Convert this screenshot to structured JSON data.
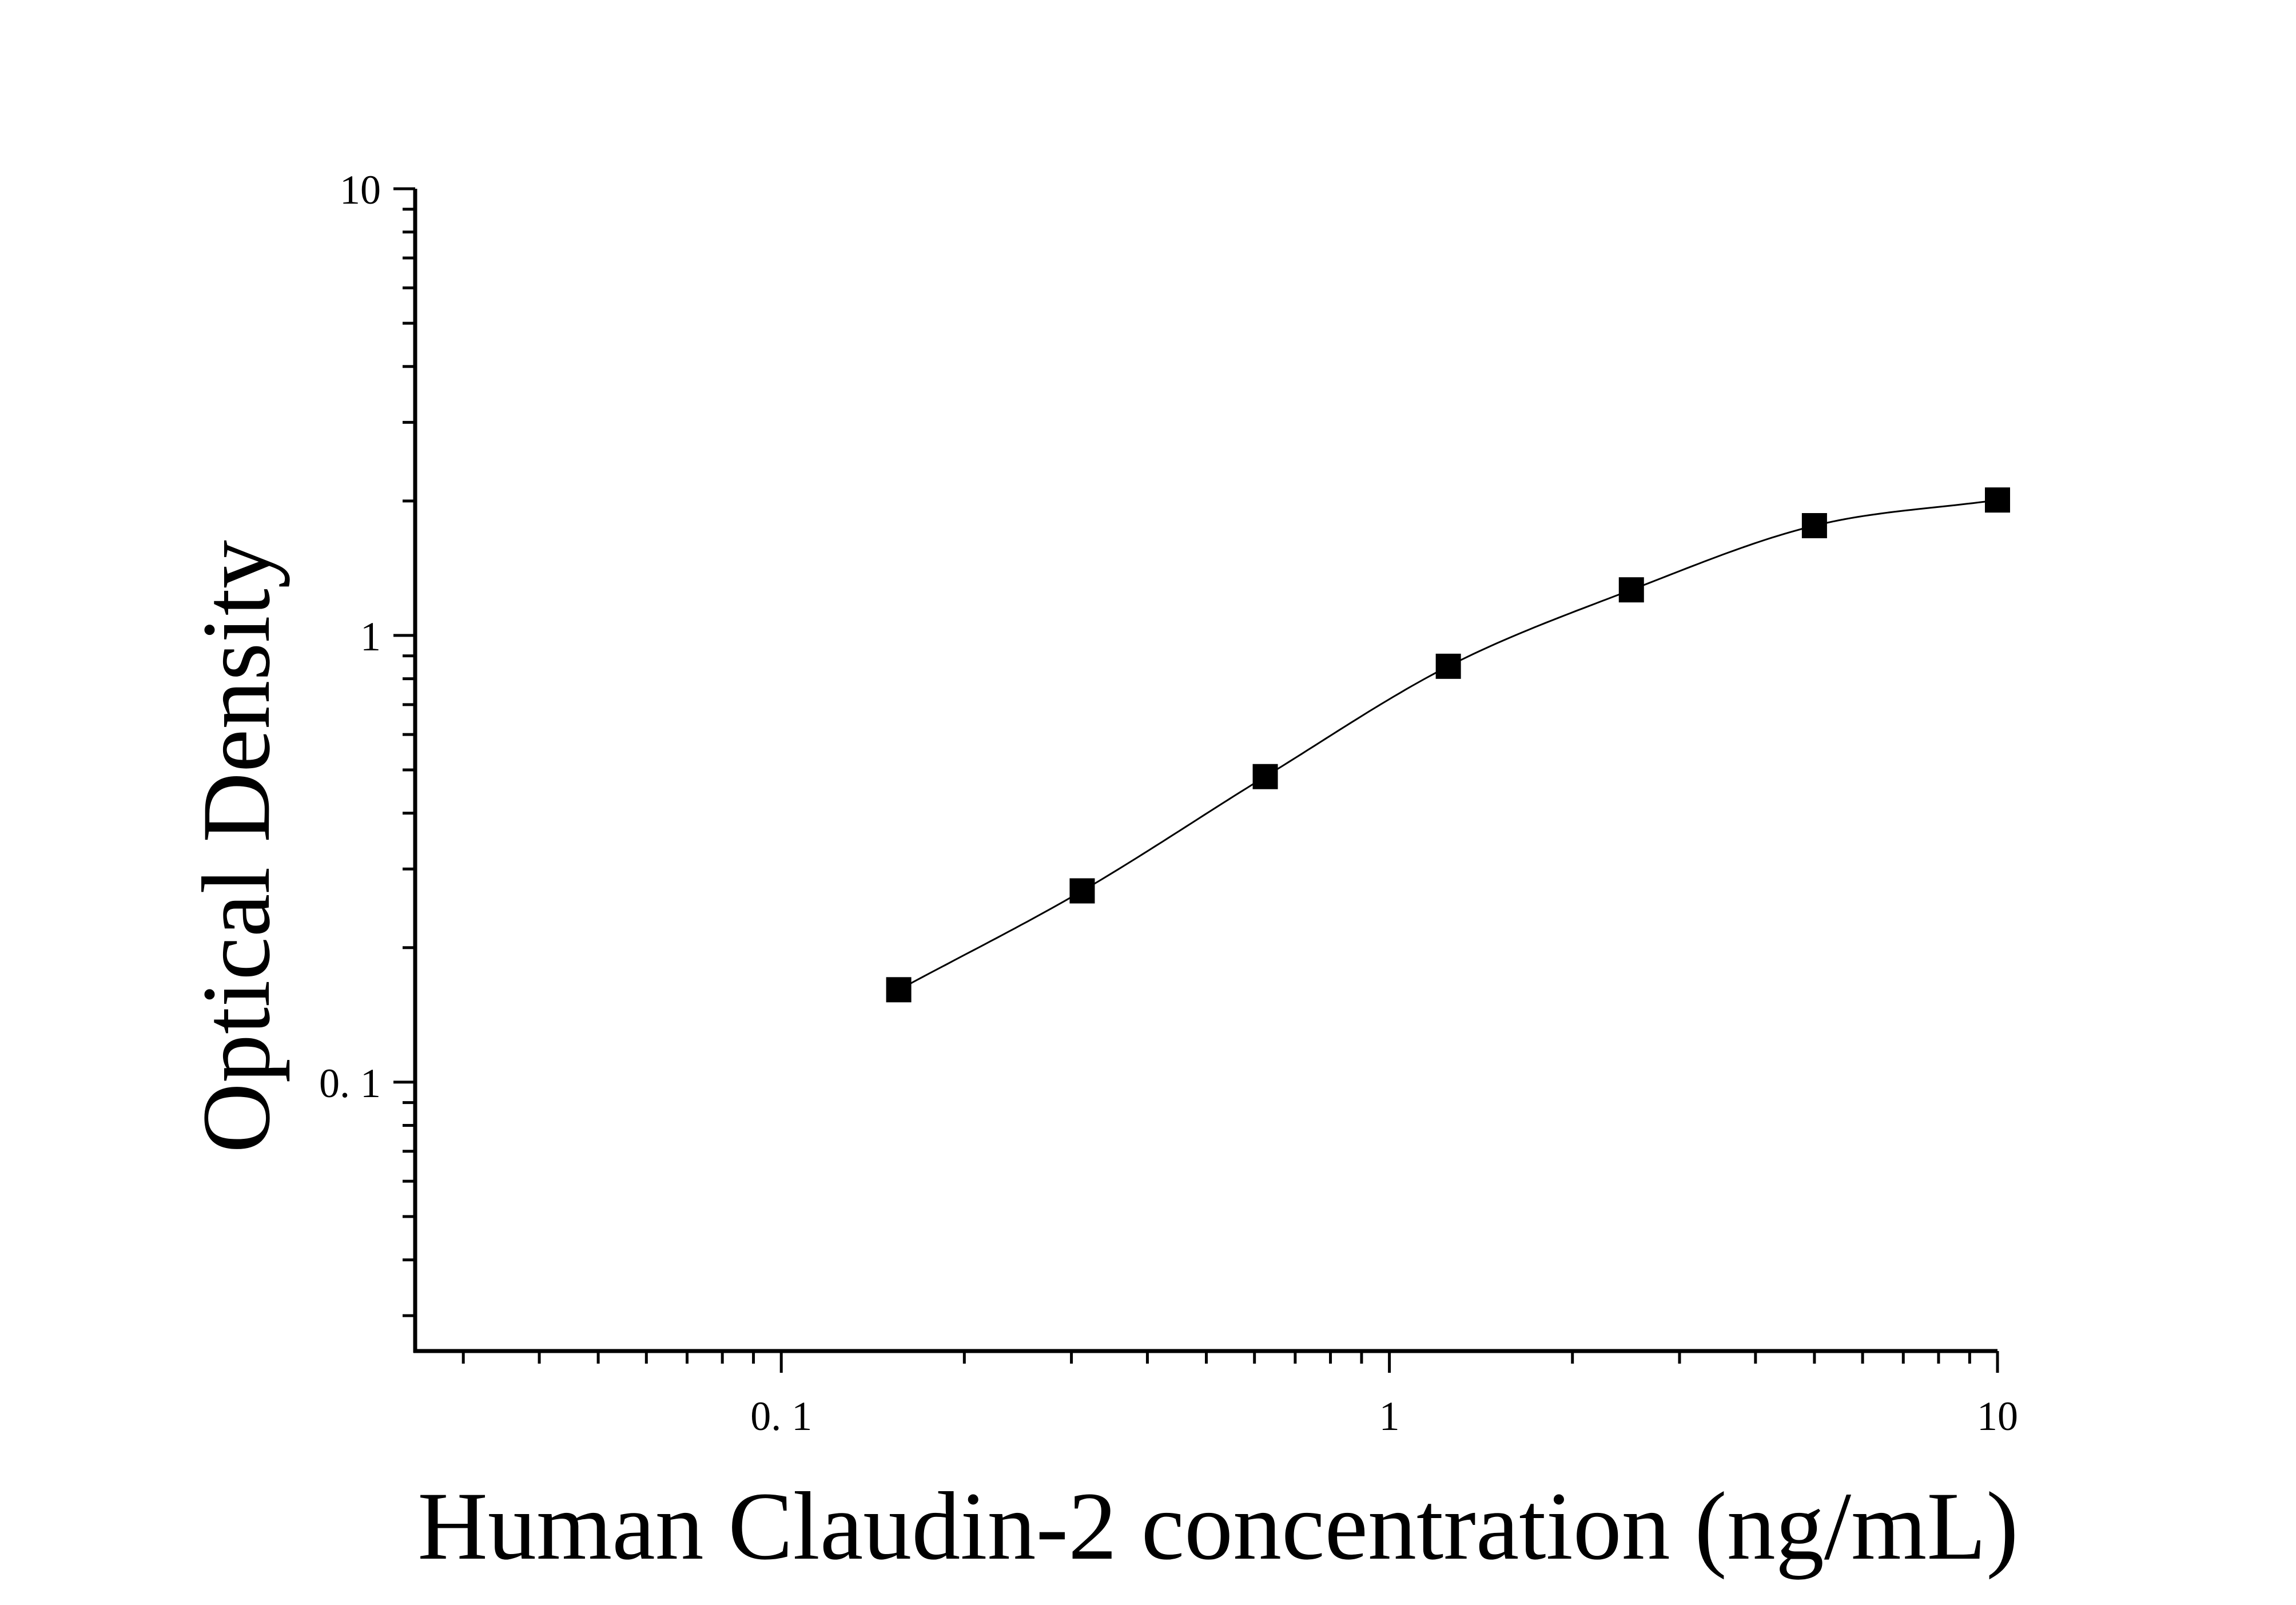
{
  "chart_data": {
    "type": "scatter",
    "title": "",
    "xlabel": "Human Claudin-2 concentration (ng/mL)",
    "ylabel": "Optical Density",
    "x_scale": "log",
    "y_scale": "log",
    "xlim": [
      0.025,
      10
    ],
    "ylim": [
      0.025,
      10
    ],
    "grid": false,
    "legend": "none",
    "x_ticks": [
      {
        "value": 0.1,
        "label": "0. 1"
      },
      {
        "value": 1,
        "label": "1"
      },
      {
        "value": 10,
        "label": "10"
      }
    ],
    "y_ticks": [
      {
        "value": 0.1,
        "label": "0. 1"
      },
      {
        "value": 1,
        "label": "1"
      },
      {
        "value": 10,
        "label": "10"
      }
    ],
    "series": [
      {
        "marker": "square",
        "color": "#000000",
        "x": [
          0.156,
          0.3125,
          0.625,
          1.25,
          2.5,
          5,
          10
        ],
        "y": [
          0.161,
          0.268,
          0.483,
          0.853,
          1.265,
          1.761,
          2.01
        ],
        "fit_curve": "4-parameter logistic"
      }
    ]
  }
}
